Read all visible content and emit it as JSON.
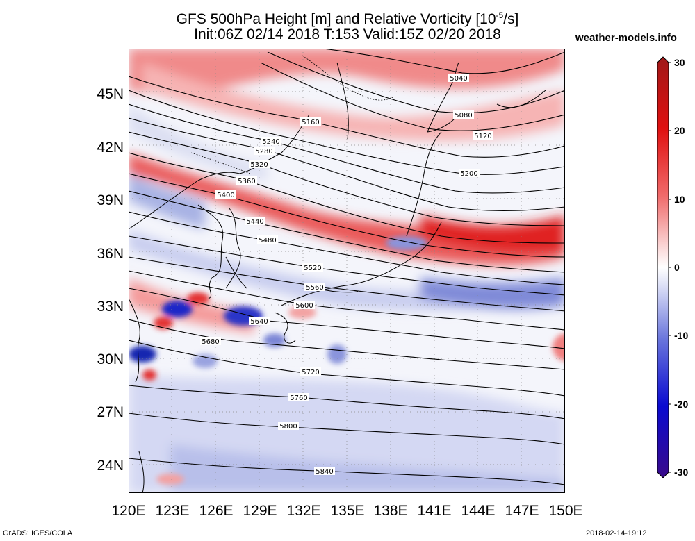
{
  "header": {
    "title_line1": "GFS 500hPa Height [m] and Relative Vorticity [10",
    "title_exp": "-5",
    "title_line1_end": "/s]",
    "title_line2": "Init:06Z 02/14 2018 T:153 Valid:15Z 02/20 2018",
    "site": "weather-models.info"
  },
  "axes": {
    "lat_labels": [
      "45N",
      "42N",
      "39N",
      "36N",
      "33N",
      "30N",
      "27N",
      "24N"
    ],
    "lon_labels": [
      "120E",
      "123E",
      "126E",
      "129E",
      "132E",
      "135E",
      "138E",
      "141E",
      "144E",
      "147E",
      "150E"
    ]
  },
  "colorbar": {
    "labels": [
      "30",
      "20",
      "10",
      "0",
      "-10",
      "-20",
      "-30"
    ]
  },
  "contours": [
    "5040",
    "5080",
    "5120",
    "5160",
    "5200",
    "5240",
    "5280",
    "5320",
    "5360",
    "5400",
    "5440",
    "5480",
    "5520",
    "5560",
    "5600",
    "5640",
    "5680",
    "5720",
    "5760",
    "5800",
    "5840"
  ],
  "footer": {
    "left": "GrADS: IGES/COLA",
    "right": "2018-02-14-19:12"
  }
}
